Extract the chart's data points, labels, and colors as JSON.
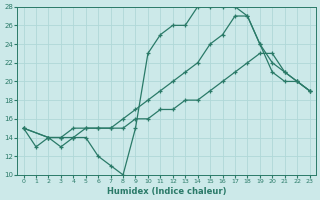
{
  "line1_x": [
    0,
    1,
    2,
    3,
    4,
    5,
    6,
    7,
    8,
    9,
    10,
    11,
    12,
    13,
    14,
    15,
    16,
    17,
    18,
    19,
    20,
    21,
    22,
    23
  ],
  "line1_y": [
    15,
    13,
    14,
    13,
    14,
    14,
    12,
    11,
    10,
    15,
    23,
    25,
    26,
    26,
    28,
    28,
    28,
    28,
    27,
    24,
    21,
    20,
    20,
    19
  ],
  "line2_x": [
    0,
    2,
    3,
    4,
    5,
    6,
    7,
    8,
    9,
    10,
    11,
    12,
    13,
    14,
    15,
    16,
    17,
    18,
    19,
    20,
    21,
    22,
    23
  ],
  "line2_y": [
    15,
    14,
    14,
    15,
    15,
    15,
    15,
    16,
    17,
    18,
    19,
    20,
    21,
    22,
    24,
    25,
    27,
    27,
    24,
    22,
    21,
    20,
    19
  ],
  "line3_x": [
    0,
    2,
    3,
    4,
    5,
    6,
    7,
    8,
    9,
    10,
    11,
    12,
    13,
    14,
    15,
    16,
    17,
    18,
    19,
    20,
    21,
    22,
    23
  ],
  "line3_y": [
    15,
    14,
    14,
    14,
    15,
    15,
    15,
    15,
    16,
    16,
    17,
    17,
    18,
    18,
    19,
    20,
    21,
    22,
    23,
    23,
    21,
    20,
    19
  ],
  "line_color": "#2a7a68",
  "bg_color": "#cce9e9",
  "grid_color": "#b0d8d8",
  "xlabel": "Humidex (Indice chaleur)",
  "xlim": [
    -0.5,
    23.5
  ],
  "ylim": [
    10,
    28
  ],
  "yticks": [
    10,
    12,
    14,
    16,
    18,
    20,
    22,
    24,
    26,
    28
  ],
  "xticks": [
    0,
    1,
    2,
    3,
    4,
    5,
    6,
    7,
    8,
    9,
    10,
    11,
    12,
    13,
    14,
    15,
    16,
    17,
    18,
    19,
    20,
    21,
    22,
    23
  ]
}
